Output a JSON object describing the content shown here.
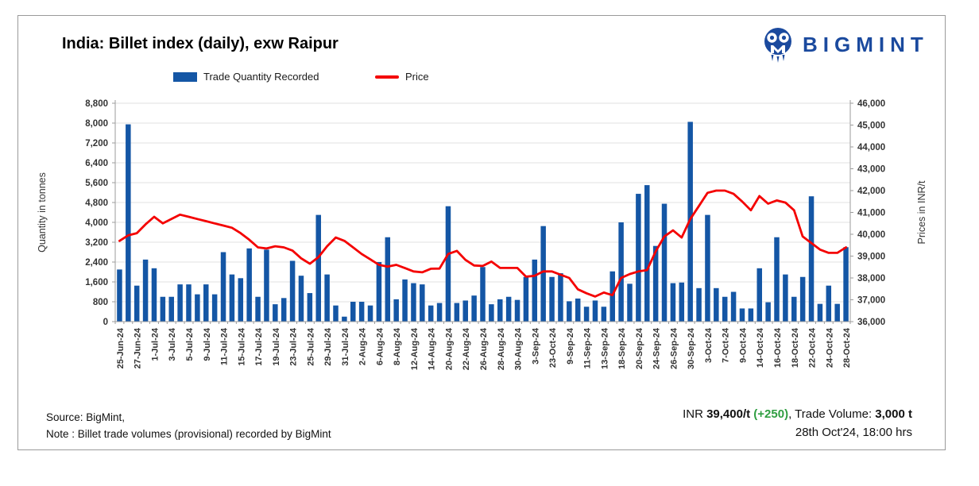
{
  "header": {
    "title": "India: Billet index (daily), exw Raipur",
    "brand": "BIGMINT"
  },
  "legend": {
    "quantity_label": "Trade Quantity Recorded",
    "price_label": "Price"
  },
  "colors": {
    "bar": "#1456a5",
    "line": "#f40000",
    "green": "#2f9e41",
    "brand": "#1b4a9e",
    "grid": "#e1e1e1",
    "axis": "#9b9b9b",
    "tick_text": "#333333"
  },
  "chart_data": {
    "type": "combo_bar_line",
    "title": "India: Billet index (daily), exw Raipur",
    "ylabel_left": "Quantity in tonnes",
    "ylabel_right": "Prices in INR/t",
    "y_left": {
      "min": 0,
      "max": 8800,
      "step": 800
    },
    "y_right": {
      "min": 36000,
      "max": 46000,
      "step": 1000
    },
    "grid": "horizontal",
    "legend_position": "top",
    "x_label_every_n_bars": 2,
    "series": [
      {
        "name": "Trade Quantity Recorded",
        "type": "bar",
        "axis": "left",
        "color": "#1456a5"
      },
      {
        "name": "Price",
        "type": "line",
        "axis": "right",
        "color": "#f40000"
      }
    ],
    "labels": [
      "25-Jun-24",
      "27-Jun-24",
      "1-Jul-24",
      "3-Jul-24",
      "5-Jul-24",
      "9-Jul-24",
      "11-Jul-24",
      "15-Jul-24",
      "17-Jul-24",
      "19-Jul-24",
      "23-Jul-24",
      "25-Jul-24",
      "29-Jul-24",
      "31-Jul-24",
      "2-Aug-24",
      "6-Aug-24",
      "8-Aug-24",
      "12-Aug-24",
      "14-Aug-24",
      "20-Aug-24",
      "22-Aug-24",
      "26-Aug-24",
      "28-Aug-24",
      "30-Aug-24",
      "3-Sep-24",
      "23-Oct-24",
      "9-Sep-24",
      "11-Sep-24",
      "13-Sep-24",
      "18-Sep-24",
      "20-Sep-24",
      "24-Sep-24",
      "26-Sep-24",
      "30-Sep-24",
      "3-Oct-24",
      "7-Oct-24",
      "9-Oct-24",
      "14-Oct-24",
      "16-Oct-24",
      "18-Oct-24",
      "22-Oct-24",
      "24-Oct-24",
      "28-Oct-24"
    ],
    "qty": [
      2100,
      7950,
      1450,
      2500,
      2150,
      1000,
      1000,
      1500,
      1500,
      1100,
      1500,
      1100,
      2800,
      1900,
      1750,
      2950,
      1000,
      2900,
      700,
      950,
      2450,
      1850,
      1150,
      4300,
      1900,
      650,
      200,
      800,
      800,
      650,
      2400,
      3400,
      900,
      1700,
      1550,
      1500,
      650,
      750,
      4650,
      750,
      850,
      1050,
      2200,
      700,
      900,
      1000,
      875,
      1800,
      2500,
      3850,
      1800,
      1950,
      820,
      930,
      600,
      850,
      600,
      2025,
      4000,
      1525,
      5150,
      5500,
      3050,
      4750,
      1550,
      1575,
      8050,
      1350,
      4300,
      1350,
      1000,
      1200,
      530,
      530,
      2150,
      780,
      3400,
      1900,
      1000,
      1800,
      5050,
      715,
      1450,
      715,
      3000
    ],
    "price": [
      39700,
      39950,
      40050,
      40450,
      40800,
      40500,
      40700,
      40900,
      40800,
      40700,
      40600,
      40500,
      40400,
      40300,
      40050,
      39750,
      39400,
      39350,
      39450,
      39400,
      39250,
      38900,
      38650,
      38950,
      39450,
      39850,
      39700,
      39400,
      39100,
      38850,
      38600,
      38520,
      38600,
      38450,
      38300,
      38260,
      38420,
      38430,
      39100,
      39240,
      38830,
      38570,
      38550,
      38750,
      38460,
      38460,
      38460,
      38060,
      38100,
      38300,
      38300,
      38150,
      38000,
      37480,
      37300,
      37150,
      37330,
      37210,
      38000,
      38180,
      38300,
      38360,
      39210,
      39900,
      40180,
      39850,
      40700,
      41300,
      41900,
      42000,
      42000,
      41850,
      41500,
      41100,
      41750,
      41400,
      41550,
      41450,
      41100,
      39900,
      39600,
      39300,
      39150,
      39150,
      39400
    ]
  },
  "footer": {
    "source": "Source: BigMint,",
    "note": "Note : Billet trade volumes (provisional) recorded by BigMint"
  },
  "callout": {
    "prefix": "INR ",
    "price": "39,400/t",
    "change": "(+250)",
    "middle": ", Trade Volume: ",
    "volume": "3,000 t",
    "timestamp": "28th Oct'24, 18:00 hrs"
  }
}
